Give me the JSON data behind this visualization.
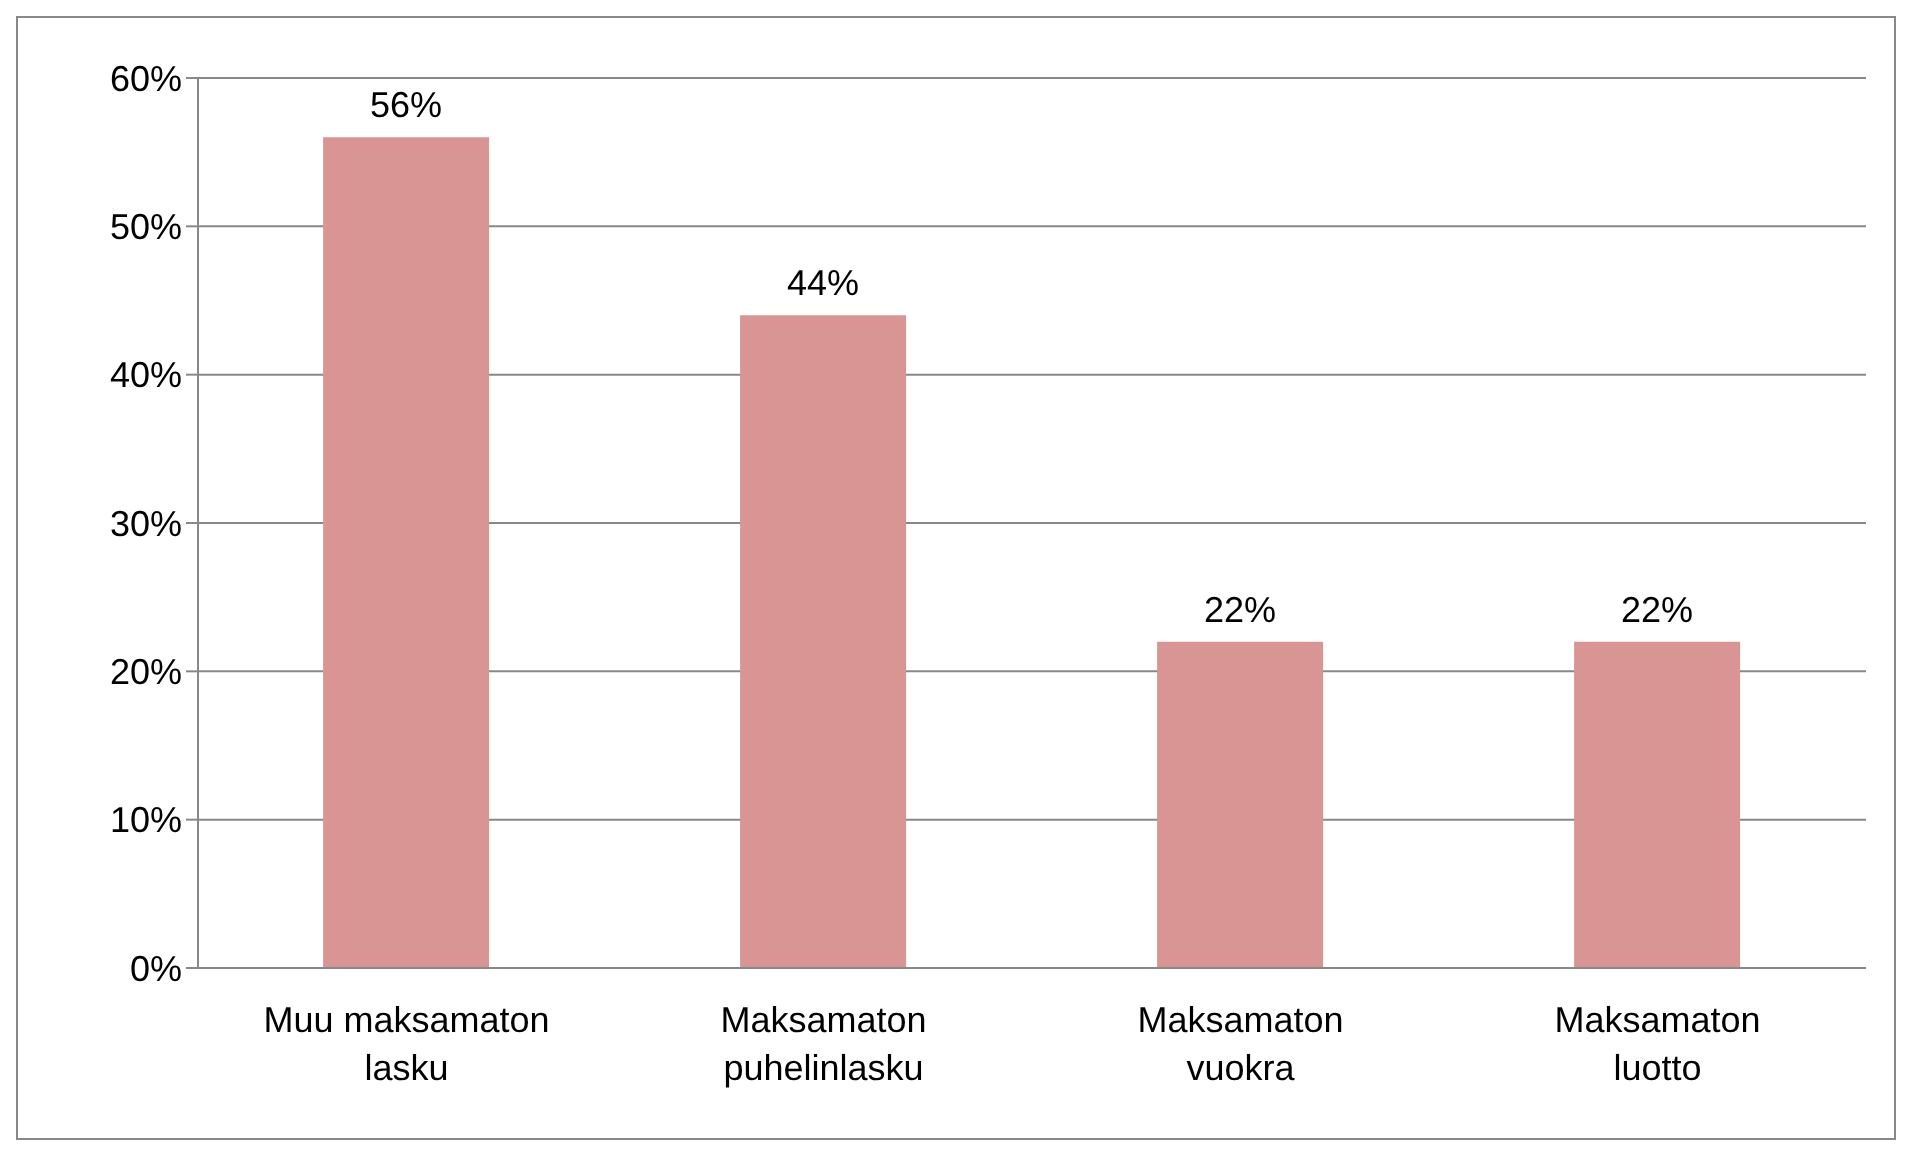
{
  "chart_data": {
    "type": "bar",
    "categories": [
      "Muu maksamaton lasku",
      "Maksamaton puhelinlasku",
      "Maksamaton vuokra",
      "Maksamaton luotto"
    ],
    "values": [
      56,
      44,
      22,
      22
    ],
    "color": "#d99594",
    "value_labels": [
      "56%",
      "44%",
      "22%",
      "22%"
    ],
    "ylim": [
      0,
      60
    ],
    "yticks": [
      {
        "value": 0,
        "label": "0%"
      },
      {
        "value": 10,
        "label": "10%"
      },
      {
        "value": 20,
        "label": "20%"
      },
      {
        "value": 30,
        "label": "30%"
      },
      {
        "value": 40,
        "label": "40%"
      },
      {
        "value": 50,
        "label": "50%"
      },
      {
        "value": 60,
        "label": "60%"
      }
    ],
    "grid": "y"
  }
}
